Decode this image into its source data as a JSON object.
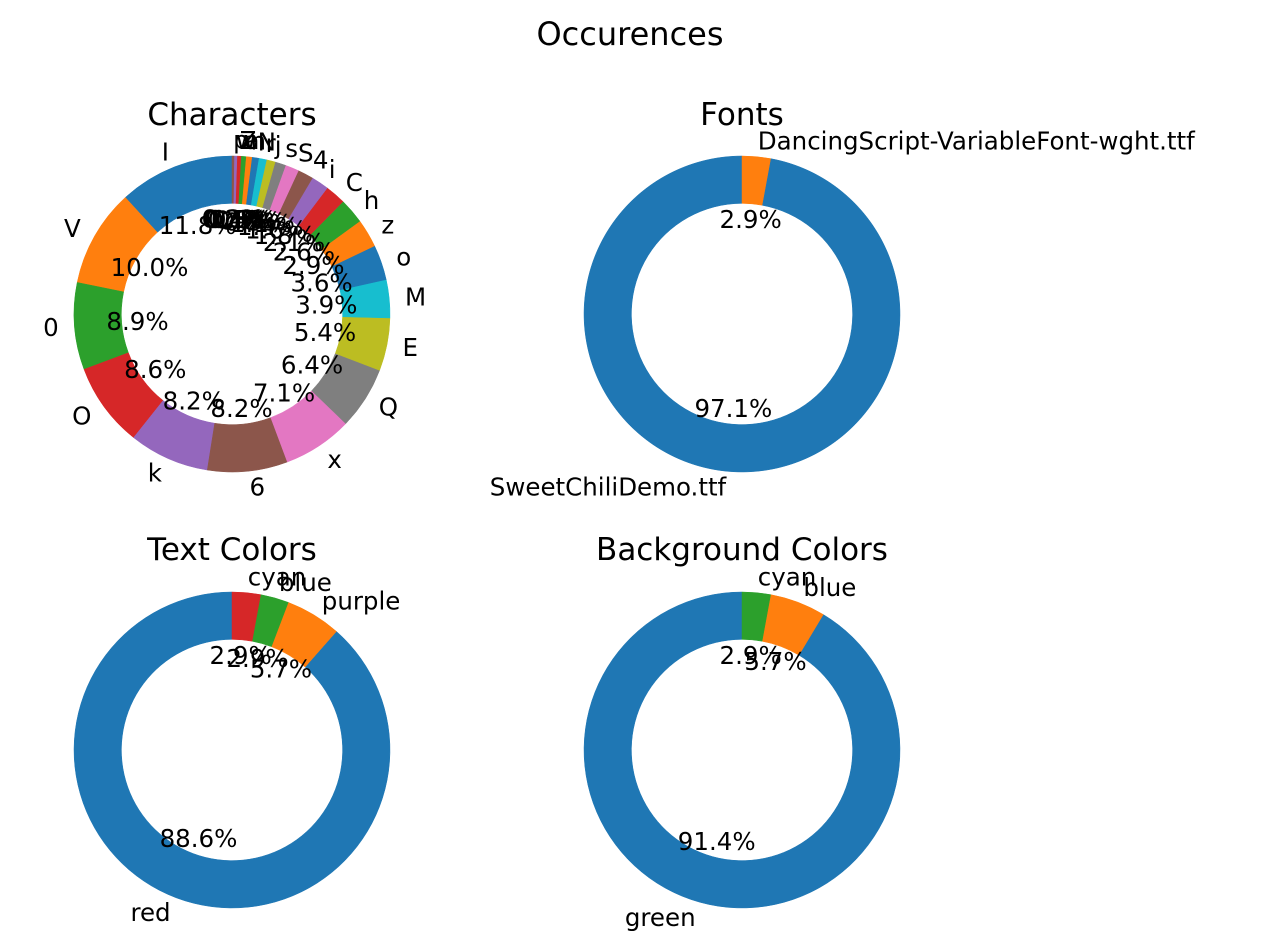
{
  "figure": {
    "title": "Occurences"
  },
  "chart_data": [
    {
      "type": "pie",
      "donut": true,
      "title": "Characters",
      "labels": [
        "I",
        "V",
        "0",
        "O",
        "k",
        "6",
        "x",
        "Q",
        "E",
        "M",
        "o",
        "z",
        "h",
        "C",
        "i",
        "4",
        "S",
        "s",
        "j",
        "r",
        "N",
        "n",
        "a",
        "Z",
        "w",
        "p"
      ],
      "values": [
        11.8,
        10.0,
        8.9,
        8.6,
        8.2,
        8.2,
        7.1,
        6.4,
        5.4,
        3.9,
        3.6,
        2.9,
        2.6,
        2.1,
        1.8,
        1.6,
        1.4,
        1.1,
        0.9,
        0.8,
        0.7,
        0.6,
        0.5,
        0.4,
        0.3,
        0.2
      ],
      "value_labels": [
        "11.8%",
        "10.0%",
        "8.9%",
        "8.6%",
        "8.2%",
        "8.2%",
        "7.1%",
        "6.4%",
        "5.4%",
        "3.9%",
        "3.6%",
        "2.9%",
        "2.6%",
        "2.1%",
        "1.8%",
        "1.6%",
        "1.4%",
        "1.1%",
        "0.9%",
        "0.8%",
        "0.7%",
        "0.6%",
        "0.5%",
        "0.4%",
        "0.3%",
        "0.2%"
      ],
      "colors": [
        "#1f77b4",
        "#ff7f0e",
        "#2ca02c",
        "#d62728",
        "#9467bd",
        "#8c564b",
        "#e377c2",
        "#7f7f7f",
        "#bcbd22",
        "#17becf"
      ],
      "start_angle": 90,
      "direction": "counterclockwise"
    },
    {
      "type": "pie",
      "donut": true,
      "title": "Fonts",
      "labels": [
        "SweetChiliDemo.ttf",
        "DancingScript-VariableFont-wght.ttf"
      ],
      "values": [
        97.1,
        2.9
      ],
      "value_labels": [
        "97.1%",
        "2.9%"
      ],
      "colors": [
        "#1f77b4",
        "#ff7f0e"
      ],
      "start_angle": 90,
      "direction": "counterclockwise"
    },
    {
      "type": "pie",
      "donut": true,
      "title": "Text Colors",
      "labels": [
        "red",
        "purple",
        "blue",
        "cyan"
      ],
      "values": [
        88.6,
        5.7,
        2.9,
        2.9
      ],
      "value_labels": [
        "88.6%",
        "5.7%",
        "2.9%",
        "2.9%"
      ],
      "colors": [
        "#1f77b4",
        "#ff7f0e",
        "#2ca02c",
        "#d62728"
      ],
      "start_angle": 90,
      "direction": "counterclockwise"
    },
    {
      "type": "pie",
      "donut": true,
      "title": "Background Colors",
      "labels": [
        "green",
        "blue",
        "cyan"
      ],
      "values": [
        91.4,
        5.7,
        2.9
      ],
      "value_labels": [
        "91.4%",
        "5.7%",
        "2.9%"
      ],
      "colors": [
        "#1f77b4",
        "#ff7f0e",
        "#2ca02c"
      ],
      "start_angle": 90,
      "direction": "counterclockwise"
    }
  ]
}
